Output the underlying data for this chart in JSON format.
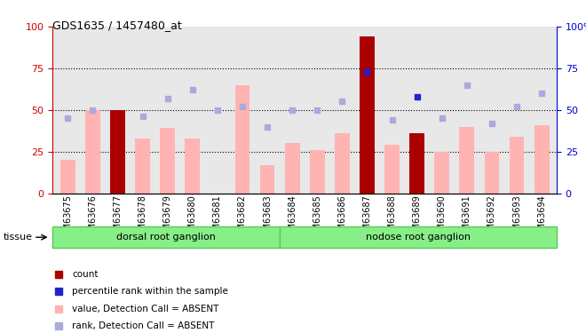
{
  "title": "GDS1635 / 1457480_at",
  "samples": [
    "GSM63675",
    "GSM63676",
    "GSM63677",
    "GSM63678",
    "GSM63679",
    "GSM63680",
    "GSM63681",
    "GSM63682",
    "GSM63683",
    "GSM63684",
    "GSM63685",
    "GSM63686",
    "GSM63687",
    "GSM63688",
    "GSM63689",
    "GSM63690",
    "GSM63691",
    "GSM63692",
    "GSM63693",
    "GSM63694"
  ],
  "bar_values": [
    20,
    50,
    50,
    33,
    39,
    33,
    0,
    65,
    17,
    30,
    26,
    36,
    94,
    29,
    36,
    25,
    40,
    25,
    34,
    41
  ],
  "bar_is_count": [
    false,
    false,
    true,
    false,
    false,
    false,
    false,
    false,
    false,
    false,
    false,
    false,
    true,
    false,
    true,
    false,
    false,
    false,
    false,
    false
  ],
  "rank_values": [
    45,
    50,
    null,
    46,
    57,
    62,
    50,
    52,
    40,
    50,
    50,
    55,
    73,
    44,
    58,
    45,
    65,
    42,
    52,
    60
  ],
  "rank_is_dark": [
    false,
    false,
    true,
    false,
    false,
    false,
    false,
    false,
    false,
    false,
    false,
    false,
    true,
    false,
    true,
    false,
    false,
    false,
    false,
    false
  ],
  "tissue_groups": [
    {
      "label": "dorsal root ganglion",
      "start": 0,
      "end": 9
    },
    {
      "label": "nodose root ganglion",
      "start": 9,
      "end": 20
    }
  ],
  "bar_color_normal": "#ffb3b3",
  "bar_color_count": "#aa0000",
  "rank_color_light": "#aaaadd",
  "rank_color_dark": "#2222cc",
  "tissue_color": "#88ee88",
  "tissue_border_color": "#55cc55",
  "bg_color": "#ffffff",
  "plot_bg_color": "#e8e8e8",
  "axis_left_color": "#cc0000",
  "axis_right_color": "#0000cc",
  "ylim": [
    0,
    100
  ],
  "dotted_lines": [
    25,
    50,
    75
  ],
  "tissue_label": "tissue"
}
